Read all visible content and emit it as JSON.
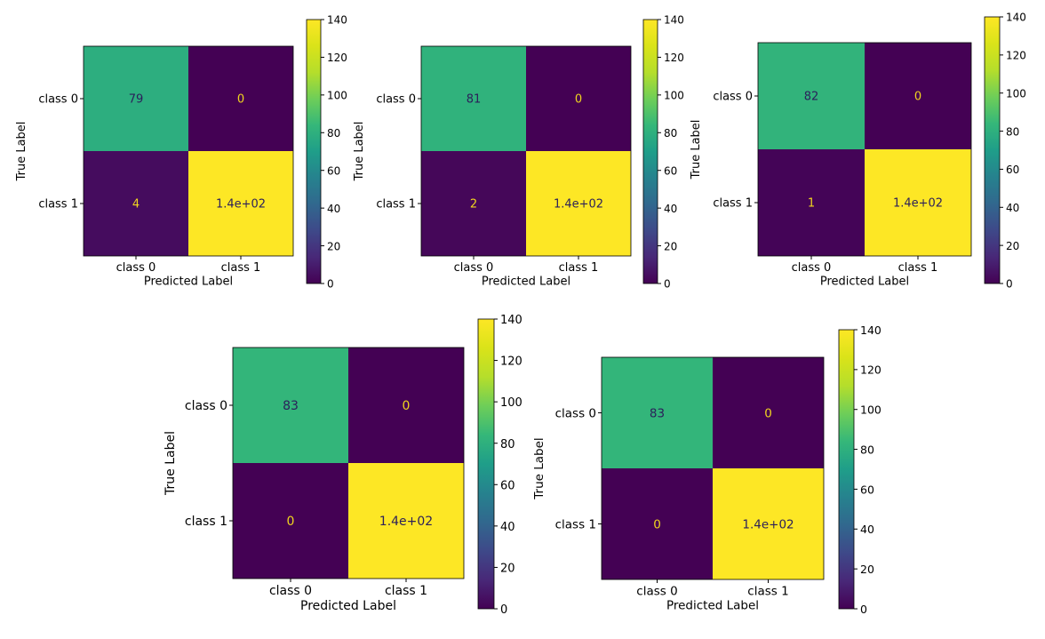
{
  "chart_data": [
    {
      "type": "heatmap",
      "title": "",
      "xlabel": "Predicted Label",
      "ylabel": "True Label",
      "x_categories": [
        "class 0",
        "class 1"
      ],
      "y_categories": [
        "class 0",
        "class 1"
      ],
      "values": [
        [
          79,
          0
        ],
        [
          4,
          140
        ]
      ],
      "cell_labels": [
        [
          "79",
          "0"
        ],
        [
          "4",
          "1.4e+02"
        ]
      ],
      "colorbar": {
        "colormap": "viridis",
        "range": [
          0,
          140
        ],
        "ticks": [
          0,
          20,
          40,
          60,
          80,
          100,
          120,
          140
        ]
      }
    },
    {
      "type": "heatmap",
      "title": "",
      "xlabel": "Predicted Label",
      "ylabel": "True Label",
      "x_categories": [
        "class 0",
        "class 1"
      ],
      "y_categories": [
        "class 0",
        "class 1"
      ],
      "values": [
        [
          81,
          0
        ],
        [
          2,
          140
        ]
      ],
      "cell_labels": [
        [
          "81",
          "0"
        ],
        [
          "2",
          "1.4e+02"
        ]
      ],
      "colorbar": {
        "colormap": "viridis",
        "range": [
          0,
          140
        ],
        "ticks": [
          0,
          20,
          40,
          60,
          80,
          100,
          120,
          140
        ]
      }
    },
    {
      "type": "heatmap",
      "title": "",
      "xlabel": "Predicted Label",
      "ylabel": "True Label",
      "x_categories": [
        "class 0",
        "class 1"
      ],
      "y_categories": [
        "class 0",
        "class 1"
      ],
      "values": [
        [
          82,
          0
        ],
        [
          1,
          140
        ]
      ],
      "cell_labels": [
        [
          "82",
          "0"
        ],
        [
          "1",
          "1.4e+02"
        ]
      ],
      "colorbar": {
        "colormap": "viridis",
        "range": [
          0,
          140
        ],
        "ticks": [
          0,
          20,
          40,
          60,
          80,
          100,
          120,
          140
        ]
      }
    },
    {
      "type": "heatmap",
      "title": "",
      "xlabel": "Predicted Label",
      "ylabel": "True Label",
      "x_categories": [
        "class 0",
        "class 1"
      ],
      "y_categories": [
        "class 0",
        "class 1"
      ],
      "values": [
        [
          83,
          0
        ],
        [
          0,
          140
        ]
      ],
      "cell_labels": [
        [
          "83",
          "0"
        ],
        [
          "0",
          "1.4e+02"
        ]
      ],
      "colorbar": {
        "colormap": "viridis",
        "range": [
          0,
          140
        ],
        "ticks": [
          0,
          20,
          40,
          60,
          80,
          100,
          120,
          140
        ]
      }
    },
    {
      "type": "heatmap",
      "title": "",
      "xlabel": "Predicted Label",
      "ylabel": "True Label",
      "x_categories": [
        "class 0",
        "class 1"
      ],
      "y_categories": [
        "class 0",
        "class 1"
      ],
      "values": [
        [
          83,
          0
        ],
        [
          0,
          140
        ]
      ],
      "cell_labels": [
        [
          "83",
          "0"
        ],
        [
          "0",
          "1.4e+02"
        ]
      ],
      "colorbar": {
        "colormap": "viridis",
        "range": [
          0,
          140
        ],
        "ticks": [
          0,
          20,
          40,
          60,
          80,
          100,
          120,
          140
        ]
      }
    }
  ],
  "colors": {
    "dark_text": "#2b1f5a",
    "light_text": "#f0d51f",
    "axis": "#000000",
    "tick_text": "#000000"
  }
}
